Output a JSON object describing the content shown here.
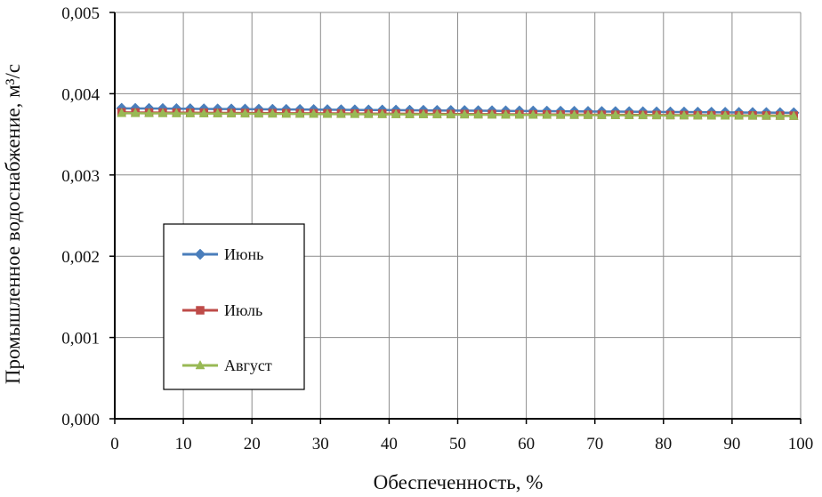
{
  "chart_data": {
    "type": "line",
    "xlabel": "Обеспеченность, %",
    "ylabel": "Промышленное водоснабжение, м³/с",
    "xlim": [
      0,
      100
    ],
    "ylim": [
      0,
      0.005
    ],
    "x_ticks": [
      "0",
      "10",
      "20",
      "30",
      "40",
      "50",
      "60",
      "70",
      "80",
      "90",
      "100"
    ],
    "y_ticks": [
      "0,000",
      "0,001",
      "0,002",
      "0,003",
      "0,004",
      "0,005"
    ],
    "grid": true,
    "legend_position": "lower-left",
    "series": [
      {
        "name": "Июнь",
        "color": "#4a7ebb",
        "marker": "diamond",
        "x_start": 1,
        "x_step": 2,
        "count": 50,
        "y_start": 0.00382,
        "y_end": 0.003765
      },
      {
        "name": "Июль",
        "color": "#be4b48",
        "marker": "square",
        "x_start": 1,
        "x_step": 2,
        "count": 50,
        "y_start": 0.00377,
        "y_end": 0.00373
      },
      {
        "name": "Август",
        "color": "#98b954",
        "marker": "triangle",
        "x_start": 1,
        "x_step": 2,
        "count": 50,
        "y_start": 0.00376,
        "y_end": 0.003725
      }
    ]
  }
}
